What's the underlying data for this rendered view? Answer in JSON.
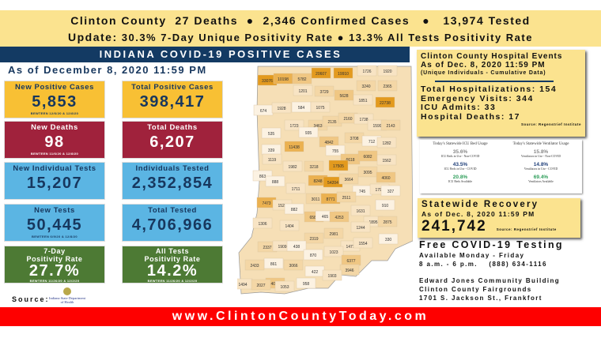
{
  "banner": {
    "line1": "Clinton County  27 Deaths  ●  2,346 Confirmed Cases   ●   13,974 Tested",
    "line2_label": "Update:",
    "line2": " 30.3% 7-Day Unique Positivity Rate ● 13.3% All Tests Positivity Rate"
  },
  "indiana": {
    "title": "INDIANA COVID-19 POSITIVE CASES",
    "as_of": "As of December 8, 2020 11:59 PM",
    "cards": [
      {
        "title": "New Positive Cases",
        "value": "5,853",
        "sub": "BEWTEEN 12/6/20 & 12/8/20",
        "color": "yellow"
      },
      {
        "title": "Total Positive Cases",
        "value": "398,417",
        "sub": "",
        "color": "yellow"
      },
      {
        "title": "New Deaths",
        "value": "98",
        "sub": "BEWTEEN 11/6/20 & 12/8/20",
        "color": "red"
      },
      {
        "title": "Total Deaths",
        "value": "6,207",
        "sub": "",
        "color": "red"
      },
      {
        "title": "New Individual Tests",
        "value": "15,207",
        "sub": "",
        "color": "blue"
      },
      {
        "title": "Individuals Tested",
        "value": "2,352,854",
        "sub": "",
        "color": "blue"
      },
      {
        "title": "New Tests",
        "value": "50,445",
        "sub": "BEWTEEN 6/9/20 & 12/8/20",
        "color": "blue"
      },
      {
        "title": "Total Tested",
        "value": "4,706,966",
        "sub": "",
        "color": "blue"
      },
      {
        "title": "7-Day\nPositivity Rate",
        "value": "27.7%",
        "sub": "BEWTEEN 11/26/20 & 12/2/20",
        "color": "green"
      },
      {
        "title": "All Tests\nPositivity Rate",
        "value": "14.2%",
        "sub": "BEWTEEN 11/26/20 & 12/2/20",
        "color": "green"
      }
    ],
    "source_label": "Source:",
    "source_logo": "Indiana State Department of Health"
  },
  "county_map": [
    33076,
    10198,
    5782,
    20607,
    19910,
    1726,
    1920,
    1201,
    3729,
    5628,
    3240,
    2365,
    674,
    1928,
    584,
    1075,
    1851,
    22738,
    1723,
    3463,
    2135,
    2160,
    1738,
    1599,
    2143,
    535,
    935,
    3708,
    712,
    1282,
    11438,
    4842,
    339,
    755,
    6618,
    6082,
    1119,
    1562,
    1982,
    3218,
    17505,
    3095,
    863,
    888,
    8248,
    54204,
    3664,
    4060,
    1711,
    745,
    1794,
    327,
    7473,
    1525,
    3011,
    8771,
    2511,
    910,
    882,
    1631,
    6586,
    465,
    4253,
    1895,
    2875,
    1306,
    1404,
    1244,
    2319,
    2981,
    330,
    1477,
    1554,
    2337,
    1909,
    438,
    870,
    1023,
    6377,
    861,
    3066,
    3946,
    422,
    1903,
    2433,
    4029,
    1494,
    2027,
    1053,
    958
  ],
  "hospital": {
    "title": "Clinton County Hospital Events",
    "as_of": "As of Dec. 8, 2020 11:59 PM",
    "note": "(Unique Individuals - Cumulative Data)",
    "stats": [
      "Total Hospitalizations: 154",
      "Emergency Visits: 344",
      "ICU Admits: 33",
      "Hospital Deaths: 17"
    ],
    "source": "Source: Regenstrief Institute"
  },
  "usage": {
    "icu": {
      "title": "Today's Statewide ICU Bed Usage",
      "items": [
        {
          "pct": "35.6%",
          "label": "ICU Beds in Use - Non-COVID",
          "color": "#888888"
        },
        {
          "pct": "43.5%",
          "label": "ICU Beds in Use - COVID",
          "color": "#1f3f7a"
        },
        {
          "pct": "20.8%",
          "label": "ICU Beds Available",
          "color": "#2e9e5a"
        }
      ]
    },
    "vent": {
      "title": "Today's Statewide Ventilator Usage",
      "items": [
        {
          "pct": "15.8%",
          "label": "Ventilators in Use - Non-COVID",
          "color": "#888888"
        },
        {
          "pct": "14.8%",
          "label": "Ventilators in Use - COVID",
          "color": "#1f3f7a"
        },
        {
          "pct": "69.4%",
          "label": "Ventilators Available",
          "color": "#2e9e5a"
        }
      ]
    }
  },
  "recovery": {
    "title": "Statewide Recovery",
    "as_of": "As of Dec. 8, 2020 11:59 PM",
    "value": "241,742",
    "source": "Source: Regenstrief Institute"
  },
  "testing": {
    "title": "Free COVID-19 Testing",
    "days": "Available Monday - Friday",
    "hours": "8 a.m. - 6 p.m.    (888) 634-1116",
    "addr1": "Edward Jones Community Building",
    "addr2": "Clinton County Fairgrounds",
    "addr3": "1701 S. Jackson St., Frankfort"
  },
  "footer": {
    "url": "www.ClintonCountyToday.com"
  },
  "colors": {
    "banner": "#fbe38f",
    "navy": "#133a63",
    "red_footer": "#fe0000",
    "card_yellow": "#f8c034",
    "card_red": "#a0223c",
    "card_blue": "#5bb5e3",
    "card_green": "#4d7a34"
  }
}
